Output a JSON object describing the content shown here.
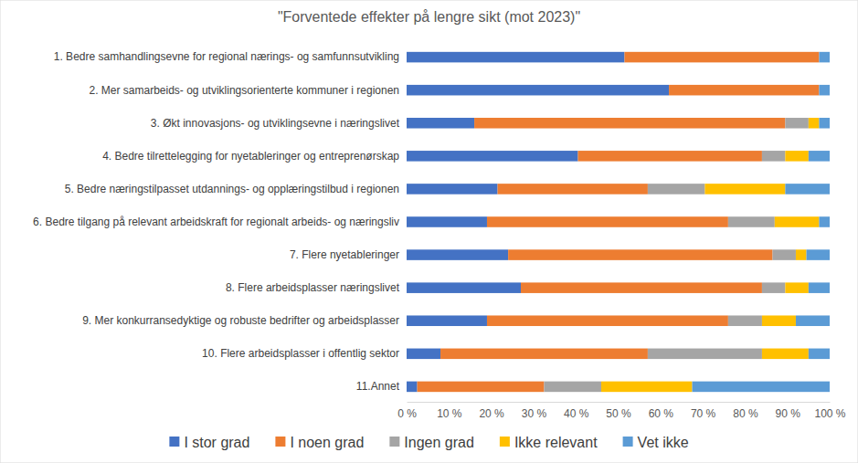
{
  "chart_data": {
    "type": "bar",
    "title": "\"Forventede effekter på lengre sikt (mot 2023)\"",
    "orientation": "horizontal",
    "stacked": true,
    "grid": false,
    "legend": "bottom",
    "categories": [
      "1. Bedre samhandlingsevne for regional nærings- og samfunnsutvikling",
      "2. Mer samarbeids- og utviklingsorienterte kommuner i regionen",
      "3. Økt innovasjons- og utviklingsevne i næringslivet",
      "4. Bedre tilrettelegging for nyetableringer og entreprenørskap",
      "5. Bedre næringstilpasset utdannings- og opplæringstilbud i regionen",
      "6. Bedre tilgang på relevant arbeidskraft for regionalt arbeids- og næringsliv",
      "7. Flere nyetableringer",
      "8. Flere arbeidsplasser næringslivet",
      "9. Mer konkurransedyktige og robuste bedrifter og arbeidsplasser",
      "10. Flere arbeidsplasser i offentlig sektor",
      "11.Annet"
    ],
    "series": [
      {
        "name": "I stor grad",
        "color": "#4472c4",
        "values": [
          51.5,
          62,
          16,
          40.5,
          21.5,
          19,
          24,
          27,
          19,
          8,
          2.5
        ]
      },
      {
        "name": "I noen grad",
        "color": "#ed7d31",
        "values": [
          46,
          35.5,
          73.5,
          43.5,
          35.5,
          57,
          62.5,
          57,
          57,
          49,
          30
        ]
      },
      {
        "name": "Ingen grad",
        "color": "#a5a5a5",
        "values": [
          0,
          0,
          5.5,
          5.5,
          13.5,
          11,
          5.5,
          5.5,
          8,
          27,
          13.5
        ]
      },
      {
        "name": "Ikke relevant",
        "color": "#ffc000",
        "values": [
          0,
          0,
          2.5,
          5.5,
          19,
          10.5,
          2.5,
          5.5,
          8,
          11,
          21.5
        ]
      },
      {
        "name": "Vet ikke",
        "color": "#5b9bd5",
        "values": [
          2.5,
          2.5,
          2.5,
          5,
          10.5,
          2.5,
          5.5,
          5,
          8,
          5,
          32.5
        ]
      }
    ],
    "xlim": [
      0,
      100
    ],
    "xticks": [
      {
        "value": 0,
        "label": "0 %"
      },
      {
        "value": 10,
        "label": "10 %"
      },
      {
        "value": 20,
        "label": "20 %"
      },
      {
        "value": 30,
        "label": "30 %"
      },
      {
        "value": 40,
        "label": "40 %"
      },
      {
        "value": 50,
        "label": "50 %"
      },
      {
        "value": 60,
        "label": "60 %"
      },
      {
        "value": 70,
        "label": "70 %"
      },
      {
        "value": 80,
        "label": "80 %"
      },
      {
        "value": 90,
        "label": "90 %"
      },
      {
        "value": 100,
        "label": "100 %"
      }
    ]
  }
}
